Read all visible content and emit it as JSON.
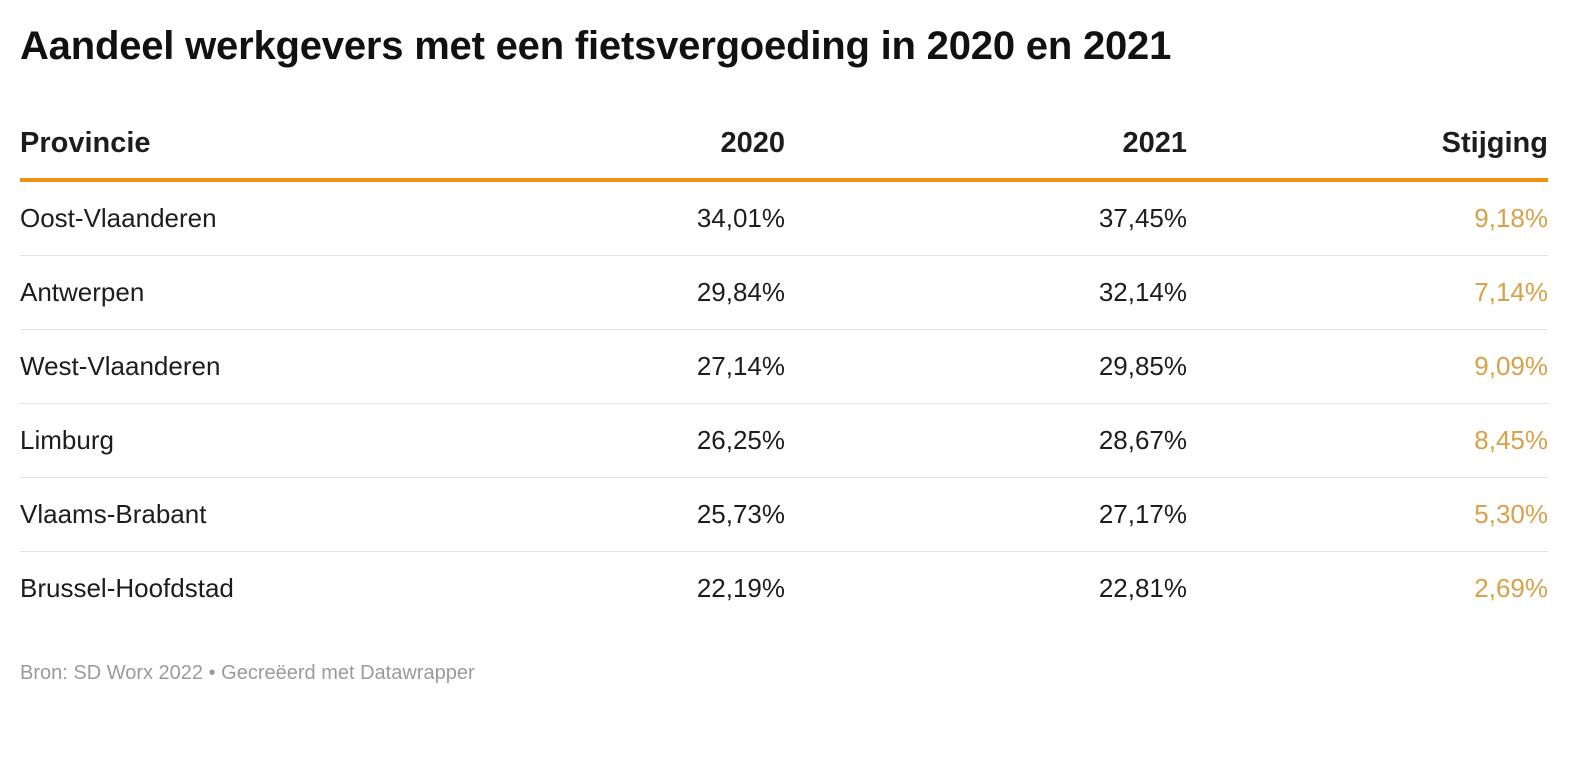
{
  "title": "Aandeel werkgevers met een fietsvergoeding in 2020 en 2021",
  "colors": {
    "header_rule": "#f0920f",
    "increase_text": "#d7a14a",
    "row_divider": "#e3e3e3",
    "footer_text": "#9a9a9a"
  },
  "columns": [
    "Provincie",
    "2020",
    "2021",
    "Stijging"
  ],
  "rows": [
    {
      "provincie": "Oost-Vlaanderen",
      "y2020": "34,01%",
      "y2021": "37,45%",
      "stijging": "9,18%"
    },
    {
      "provincie": "Antwerpen",
      "y2020": "29,84%",
      "y2021": "32,14%",
      "stijging": "7,14%"
    },
    {
      "provincie": "West-Vlaanderen",
      "y2020": "27,14%",
      "y2021": "29,85%",
      "stijging": "9,09%"
    },
    {
      "provincie": "Limburg",
      "y2020": "26,25%",
      "y2021": "28,67%",
      "stijging": "8,45%"
    },
    {
      "provincie": "Vlaams-Brabant",
      "y2020": "25,73%",
      "y2021": "27,17%",
      "stijging": "5,30%"
    },
    {
      "provincie": "Brussel-Hoofdstad",
      "y2020": "22,19%",
      "y2021": "22,81%",
      "stijging": "2,69%"
    }
  ],
  "footer": "Bron: SD Worx 2022 • Gecreëerd met Datawrapper",
  "chart_data": {
    "type": "table",
    "title": "Aandeel werkgevers met een fietsvergoeding in 2020 en 2021",
    "columns": [
      "Provincie",
      "2020",
      "2021",
      "Stijging"
    ],
    "categories": [
      "Oost-Vlaanderen",
      "Antwerpen",
      "West-Vlaanderen",
      "Limburg",
      "Vlaams-Brabant",
      "Brussel-Hoofdstad"
    ],
    "series": [
      {
        "name": "2020",
        "values": [
          34.01,
          29.84,
          27.14,
          26.25,
          25.73,
          22.19
        ]
      },
      {
        "name": "2021",
        "values": [
          37.45,
          32.14,
          29.85,
          28.67,
          27.17,
          22.81
        ]
      },
      {
        "name": "Stijging",
        "values": [
          9.18,
          7.14,
          9.09,
          8.45,
          5.3,
          2.69
        ]
      }
    ],
    "unit": "%"
  }
}
